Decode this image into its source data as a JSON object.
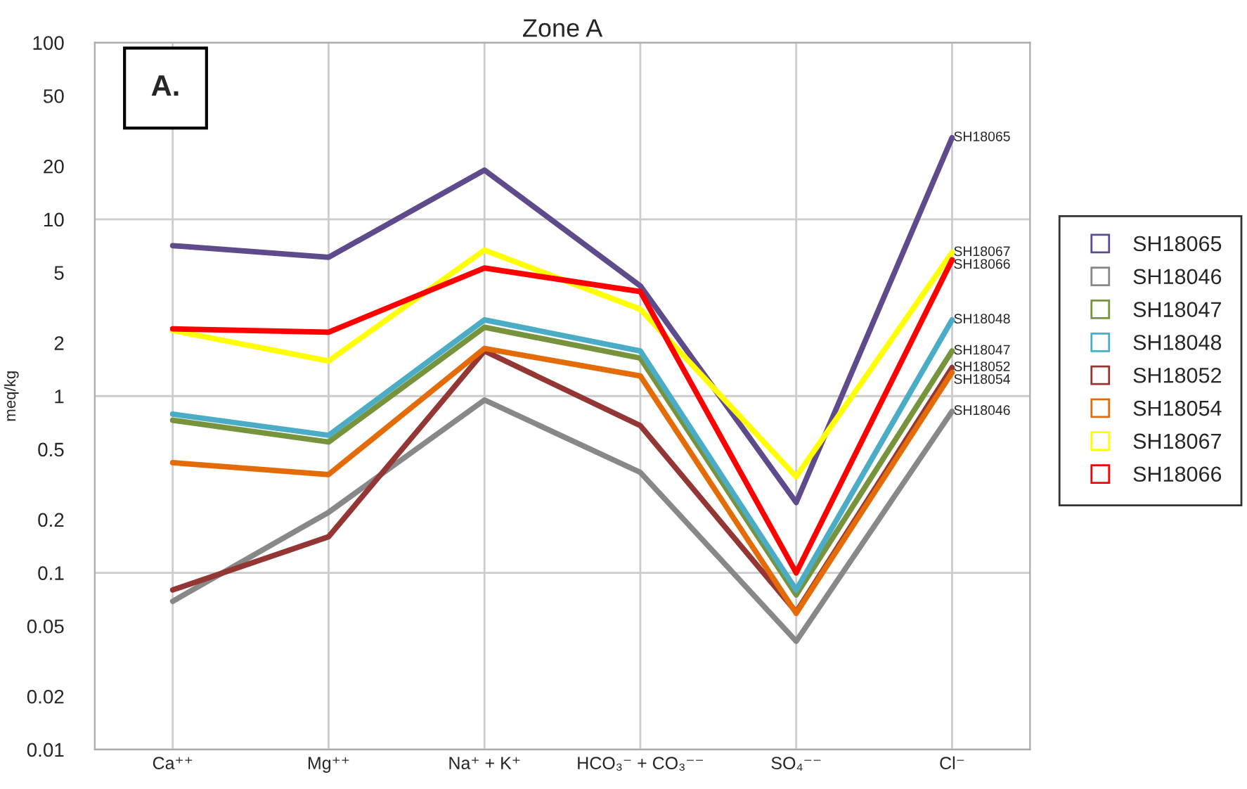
{
  "chart_data": {
    "type": "line",
    "title": "Zone A",
    "ylabel": "meq/kg",
    "categories": [
      "Ca⁺⁺",
      "Mg⁺⁺",
      "Na⁺ + K⁺",
      "HCO₃⁻ + CO₃⁻⁻",
      "SO₄⁻⁻",
      "Cl⁻"
    ],
    "series": [
      {
        "name": "SH18065",
        "color": "#5f4b8b",
        "values": [
          7.1,
          6.1,
          19,
          4.2,
          0.25,
          29
        ]
      },
      {
        "name": "SH18046",
        "color": "#888888",
        "values": [
          0.069,
          0.22,
          0.95,
          0.37,
          0.041,
          0.82
        ]
      },
      {
        "name": "SH18047",
        "color": "#77933c",
        "values": [
          0.73,
          0.55,
          2.45,
          1.64,
          0.075,
          1.8
        ]
      },
      {
        "name": "SH18048",
        "color": "#4bacc6",
        "values": [
          0.79,
          0.6,
          2.7,
          1.8,
          0.08,
          2.7
        ]
      },
      {
        "name": "SH18052",
        "color": "#943634",
        "values": [
          0.08,
          0.16,
          1.8,
          0.68,
          0.06,
          1.45
        ]
      },
      {
        "name": "SH18054",
        "color": "#e36c09",
        "values": [
          0.42,
          0.36,
          1.86,
          1.3,
          0.059,
          1.36
        ]
      },
      {
        "name": "SH18067",
        "color": "#ffff00",
        "values": [
          2.35,
          1.58,
          6.7,
          3.1,
          0.35,
          6.5
        ]
      },
      {
        "name": "SH18066",
        "color": "#ff0000",
        "values": [
          2.4,
          2.3,
          5.3,
          3.9,
          0.1,
          5.9
        ]
      }
    ],
    "log": true,
    "ylim": [
      0.01,
      100
    ],
    "yticks": [
      0.01,
      0.02,
      0.05,
      0.1,
      0.2,
      0.5,
      1,
      2,
      5,
      10,
      20,
      50,
      100
    ],
    "grid": true,
    "legend": "right",
    "marker": "none",
    "line_style": "solid",
    "annotations": [
      "A."
    ]
  }
}
